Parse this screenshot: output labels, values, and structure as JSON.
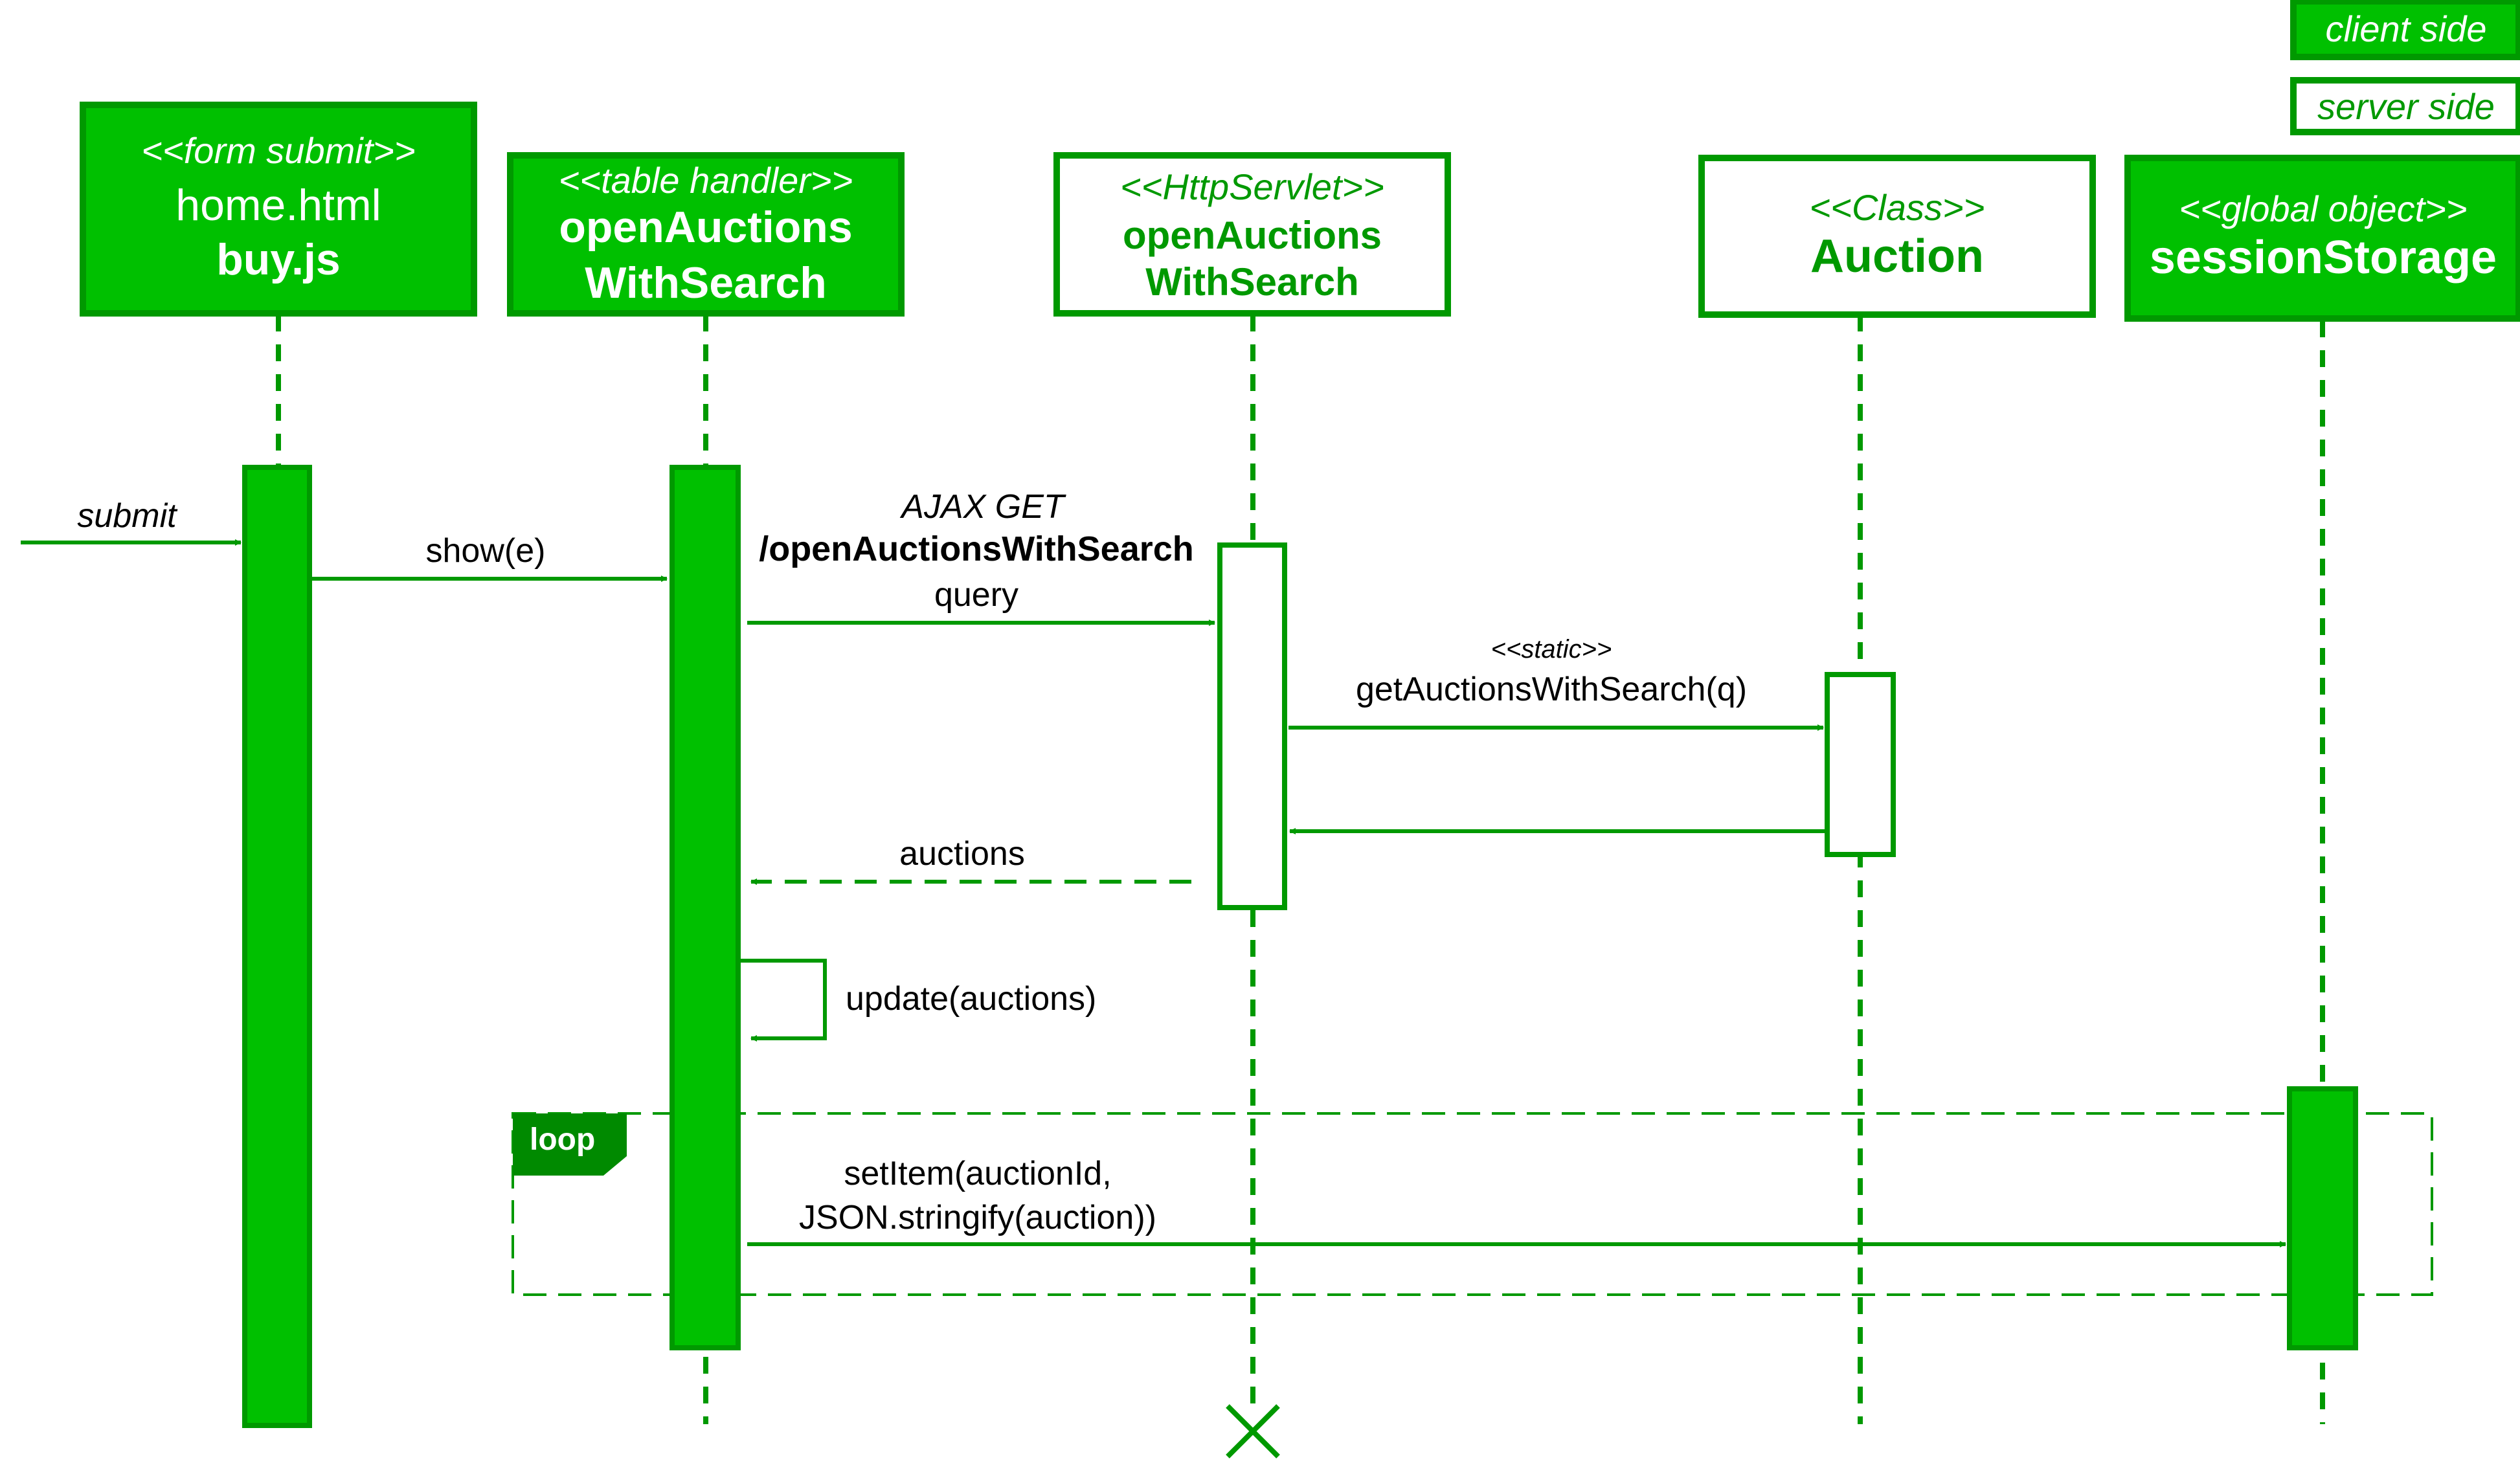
{
  "legend": {
    "client_label": "client side",
    "server_label": "server side"
  },
  "participants": [
    {
      "stereotype": "<<form submit>>",
      "line1": "home.html",
      "line2": "buy.js",
      "side": "client"
    },
    {
      "stereotype": "<<table handler>>",
      "line1": "openAuctions",
      "line2": "WithSearch",
      "side": "client"
    },
    {
      "stereotype": "<<HttpServlet>>",
      "line1": "openAuctions",
      "line2": "WithSearch",
      "side": "server"
    },
    {
      "stereotype": "<<Class>>",
      "line1": "Auction",
      "line2": "",
      "side": "server"
    },
    {
      "stereotype": "<<global object>>",
      "line1": "sessionStorage",
      "line2": "",
      "side": "client"
    }
  ],
  "messages": {
    "submit": "submit",
    "show": "show(e)",
    "ajax_line1": "AJAX GET",
    "ajax_line2": "/openAuctionsWithSearch",
    "ajax_line3": "query",
    "static_stereotype": "<<static>>",
    "get_auctions": "getAuctionsWithSearch(q)",
    "auctions_return": "auctions",
    "update": "update(auctions)",
    "setitem_line1": "setItem(auctionId,",
    "setitem_line2": "JSON.stringify(auction))"
  },
  "loop": {
    "label": "loop"
  },
  "colors": {
    "fill_green": "#00c000",
    "stroke_green": "#009900",
    "loop_tag": "#008a00",
    "white": "#ffffff",
    "text_dark": "#000000"
  }
}
